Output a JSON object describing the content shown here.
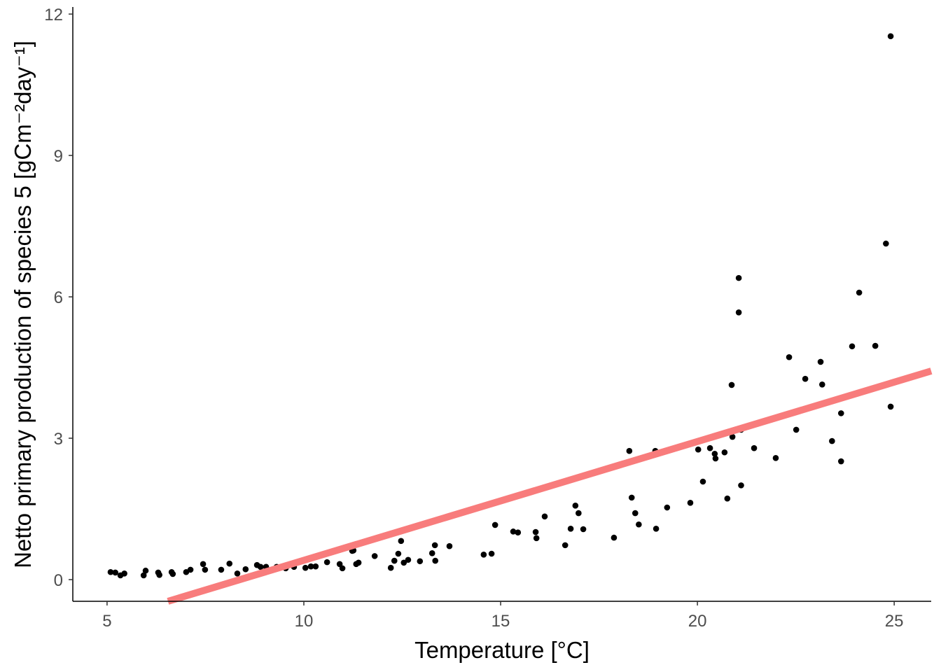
{
  "chart_data": {
    "type": "scatter",
    "title": "",
    "xlabel": "Temperature [°C]",
    "ylabel": "Netto primary production of species 5 [gCm⁻²day⁻¹]",
    "xlim": [
      4.13,
      25.94
    ],
    "ylim": [
      -0.46,
      12.15
    ],
    "x_ticks": [
      5,
      10,
      15,
      20,
      25
    ],
    "y_ticks": [
      0,
      3,
      6,
      9,
      12
    ],
    "x_tick_labels": [
      "5",
      "10",
      "15",
      "20",
      "25"
    ],
    "y_tick_labels": [
      "0",
      "3",
      "6",
      "9",
      "12"
    ],
    "grid": false,
    "legend": "none",
    "point_color": "#000000",
    "fit_line": {
      "type": "linear",
      "slope": 0.252,
      "intercept": -2.11,
      "color": "#f87c7c"
    },
    "points": [
      [
        5.09,
        0.16
      ],
      [
        5.21,
        0.15
      ],
      [
        5.34,
        0.09
      ],
      [
        5.44,
        0.13
      ],
      [
        5.93,
        0.09
      ],
      [
        5.98,
        0.19
      ],
      [
        6.3,
        0.15
      ],
      [
        6.33,
        0.1
      ],
      [
        6.64,
        0.16
      ],
      [
        6.67,
        0.12
      ],
      [
        7.01,
        0.16
      ],
      [
        7.12,
        0.21
      ],
      [
        7.44,
        0.33
      ],
      [
        7.49,
        0.21
      ],
      [
        7.9,
        0.21
      ],
      [
        8.11,
        0.34
      ],
      [
        8.31,
        0.13
      ],
      [
        8.52,
        0.22
      ],
      [
        8.81,
        0.31
      ],
      [
        8.9,
        0.27
      ],
      [
        9.04,
        0.27
      ],
      [
        9.31,
        0.27
      ],
      [
        9.54,
        0.24
      ],
      [
        9.75,
        0.27
      ],
      [
        10.04,
        0.25
      ],
      [
        10.18,
        0.28
      ],
      [
        10.3,
        0.28
      ],
      [
        10.59,
        0.37
      ],
      [
        10.91,
        0.33
      ],
      [
        10.98,
        0.24
      ],
      [
        11.23,
        0.61
      ],
      [
        11.26,
        0.62
      ],
      [
        11.33,
        0.33
      ],
      [
        11.39,
        0.36
      ],
      [
        11.8,
        0.5
      ],
      [
        12.21,
        0.25
      ],
      [
        12.3,
        0.4
      ],
      [
        12.4,
        0.55
      ],
      [
        12.47,
        0.82
      ],
      [
        12.54,
        0.36
      ],
      [
        12.65,
        0.42
      ],
      [
        12.95,
        0.39
      ],
      [
        13.26,
        0.56
      ],
      [
        13.33,
        0.73
      ],
      [
        13.34,
        0.4
      ],
      [
        13.7,
        0.71
      ],
      [
        14.57,
        0.53
      ],
      [
        14.77,
        0.55
      ],
      [
        14.86,
        1.16
      ],
      [
        15.32,
        1.02
      ],
      [
        15.44,
        1.0
      ],
      [
        15.89,
        1.01
      ],
      [
        15.91,
        0.88
      ],
      [
        16.12,
        1.34
      ],
      [
        16.64,
        0.73
      ],
      [
        16.78,
        1.08
      ],
      [
        16.9,
        1.57
      ],
      [
        16.98,
        1.41
      ],
      [
        17.1,
        1.07
      ],
      [
        17.88,
        0.89
      ],
      [
        18.27,
        2.73
      ],
      [
        18.33,
        1.74
      ],
      [
        18.42,
        1.41
      ],
      [
        18.51,
        1.17
      ],
      [
        18.93,
        2.73
      ],
      [
        18.95,
        1.08
      ],
      [
        19.23,
        1.53
      ],
      [
        19.82,
        1.63
      ],
      [
        20.02,
        2.76
      ],
      [
        20.14,
        2.08
      ],
      [
        20.32,
        2.79
      ],
      [
        20.44,
        2.67
      ],
      [
        20.46,
        2.57
      ],
      [
        20.69,
        2.7
      ],
      [
        20.76,
        1.72
      ],
      [
        20.87,
        4.13
      ],
      [
        20.89,
        3.03
      ],
      [
        21.05,
        6.4
      ],
      [
        21.05,
        5.67
      ],
      [
        21.11,
        3.18
      ],
      [
        21.11,
        2.0
      ],
      [
        21.44,
        2.79
      ],
      [
        21.99,
        2.58
      ],
      [
        22.33,
        4.72
      ],
      [
        22.51,
        3.18
      ],
      [
        22.74,
        4.26
      ],
      [
        23.13,
        4.62
      ],
      [
        23.17,
        4.14
      ],
      [
        23.42,
        2.94
      ],
      [
        23.65,
        3.53
      ],
      [
        23.65,
        2.51
      ],
      [
        23.93,
        4.95
      ],
      [
        24.11,
        6.09
      ],
      [
        24.52,
        4.96
      ],
      [
        24.79,
        7.13
      ],
      [
        24.91,
        11.53
      ],
      [
        24.91,
        3.67
      ]
    ]
  }
}
